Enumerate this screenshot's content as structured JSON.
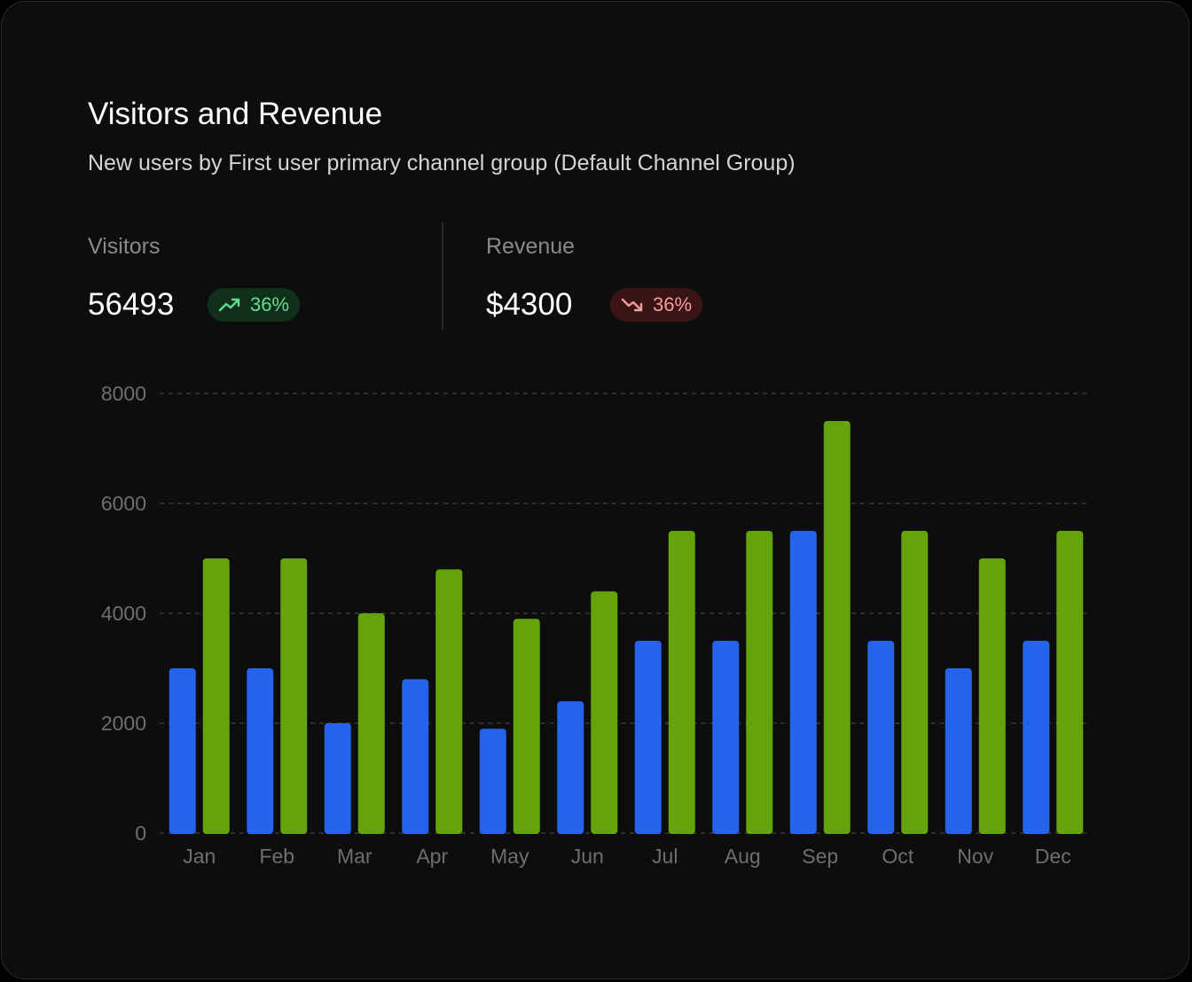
{
  "card": {
    "title": "Visitors and Revenue",
    "subtitle": "New users by First user primary channel group (Default Channel Group)"
  },
  "kpis": {
    "visitors": {
      "label": "Visitors",
      "value": "56493",
      "change": "36%",
      "trend": "up",
      "icon": "trending-up-icon",
      "color": "#63dd8f"
    },
    "revenue": {
      "label": "Revenue",
      "value": "$4300",
      "change": "36%",
      "trend": "down",
      "icon": "trending-down-icon",
      "color": "#f29d9d"
    }
  },
  "chart_data": {
    "type": "bar",
    "categories": [
      "Jan",
      "Feb",
      "Mar",
      "Apr",
      "May",
      "Jun",
      "Jul",
      "Aug",
      "Sep",
      "Oct",
      "Nov",
      "Dec"
    ],
    "series": [
      {
        "color": "#2563eb",
        "values": [
          3000,
          3000,
          2000,
          2800,
          1900,
          2400,
          3500,
          3500,
          5500,
          3500,
          3000,
          3500
        ]
      },
      {
        "color": "#65a30d",
        "values": [
          5000,
          5000,
          4000,
          4800,
          3900,
          4400,
          5500,
          5500,
          7500,
          5500,
          5000,
          5500
        ]
      }
    ],
    "ylim": [
      0,
      8000
    ],
    "yticks": [
      0,
      2000,
      4000,
      6000,
      8000
    ],
    "grid": true,
    "gridStyle": "dashed",
    "legend": "none"
  }
}
